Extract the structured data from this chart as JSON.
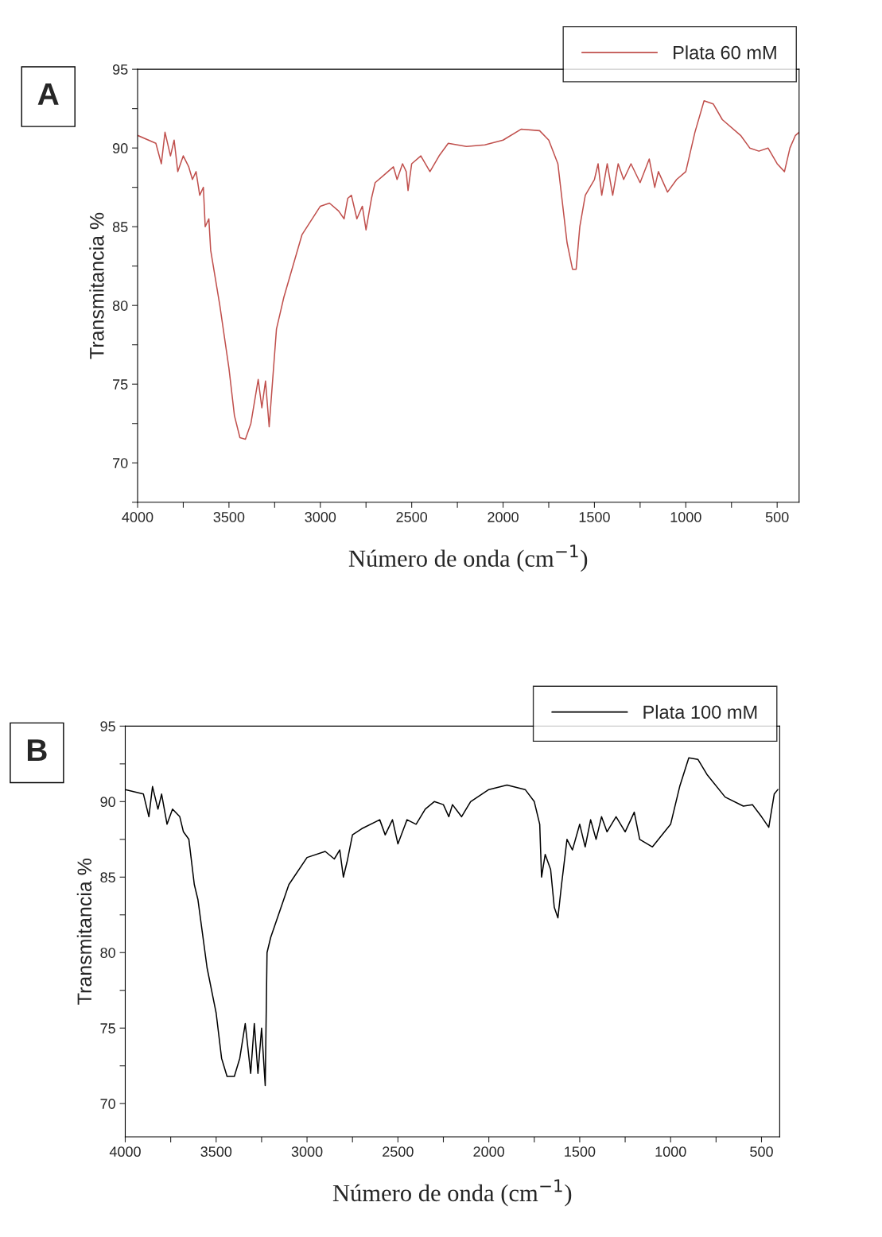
{
  "chart_data": [
    {
      "type": "line",
      "annotations": [
        "A"
      ],
      "xlabel": "Número de onda (cm$^{−1}$)",
      "ylabel": "Transmitancia %",
      "legend": "top right",
      "grid": false,
      "xlim": [
        4000,
        380
      ],
      "ylim": [
        67.5,
        95
      ],
      "xticks": [
        4000,
        {
          "value": 3750,
          "label": null
        },
        3500,
        {
          "value": 3250,
          "label": null
        },
        3000,
        {
          "value": 2750,
          "label": null
        },
        2500,
        {
          "value": 2250,
          "label": null
        },
        2000,
        {
          "value": 1750,
          "label": null
        },
        1500,
        {
          "value": 1250,
          "label": null
        },
        1000,
        {
          "value": 750,
          "label": null
        },
        500
      ],
      "yticks": [
        {
          "value": 67.5,
          "label": null
        },
        70,
        {
          "value": 72.5,
          "label": null
        },
        75,
        {
          "value": 77.5,
          "label": null
        },
        80,
        {
          "value": 82.5,
          "label": null
        },
        85,
        {
          "value": 87.5,
          "label": null
        },
        90,
        {
          "value": 92.5,
          "label": null
        },
        95
      ],
      "series": [
        {
          "name": "Plata 60 mM",
          "color": "#c0504d",
          "x": [
            4000,
            3900,
            3870,
            3850,
            3820,
            3800,
            3780,
            3750,
            3720,
            3700,
            3680,
            3660,
            3640,
            3630,
            3610,
            3600,
            3550,
            3500,
            3470,
            3440,
            3410,
            3380,
            3340,
            3320,
            3300,
            3280,
            3240,
            3220,
            3200,
            3100,
            3000,
            2950,
            2900,
            2870,
            2850,
            2830,
            2800,
            2770,
            2750,
            2720,
            2700,
            2650,
            2600,
            2580,
            2550,
            2530,
            2520,
            2500,
            2450,
            2400,
            2350,
            2300,
            2200,
            2100,
            2000,
            1900,
            1800,
            1750,
            1700,
            1680,
            1650,
            1620,
            1600,
            1580,
            1550,
            1500,
            1480,
            1460,
            1430,
            1400,
            1370,
            1340,
            1300,
            1250,
            1200,
            1170,
            1150,
            1100,
            1050,
            1000,
            950,
            900,
            850,
            800,
            700,
            650,
            600,
            550,
            500,
            460,
            430,
            400,
            380
          ],
          "values": [
            90.8,
            90.3,
            89.0,
            91.0,
            89.5,
            90.5,
            88.5,
            89.5,
            88.8,
            88.0,
            88.5,
            87.0,
            87.5,
            85.0,
            85.5,
            83.5,
            80.0,
            76.0,
            73.0,
            71.6,
            71.5,
            72.5,
            75.3,
            73.5,
            75.2,
            72.3,
            78.5,
            79.5,
            80.5,
            84.5,
            86.3,
            86.5,
            86.0,
            85.5,
            86.8,
            87.0,
            85.5,
            86.3,
            84.8,
            86.8,
            87.8,
            88.3,
            88.8,
            88.0,
            89.0,
            88.5,
            87.3,
            89.0,
            89.5,
            88.5,
            89.5,
            90.3,
            90.1,
            90.2,
            90.5,
            91.2,
            91.1,
            90.5,
            89.0,
            87.0,
            84.0,
            82.3,
            82.3,
            85.0,
            87.0,
            88.0,
            89.0,
            87.0,
            89.0,
            87.0,
            89.0,
            88.0,
            89.0,
            87.8,
            89.3,
            87.5,
            88.5,
            87.2,
            88.0,
            88.5,
            91.0,
            93.0,
            92.8,
            91.8,
            90.8,
            90.0,
            89.8,
            90.0,
            89.0,
            88.5,
            90.0,
            90.8,
            91.0
          ]
        }
      ]
    },
    {
      "type": "line",
      "annotations": [
        "B"
      ],
      "xlabel": "Número de onda (cm$^{−1}$)",
      "ylabel": "Transmitancia %",
      "legend": "top right",
      "grid": false,
      "xlim": [
        4000,
        400
      ],
      "ylim": [
        67.8,
        95
      ],
      "xticks": [
        4000,
        {
          "value": 3750,
          "label": null
        },
        3500,
        {
          "value": 3250,
          "label": null
        },
        3000,
        {
          "value": 2750,
          "label": null
        },
        2500,
        {
          "value": 2250,
          "label": null
        },
        2000,
        {
          "value": 1750,
          "label": null
        },
        1500,
        {
          "value": 1250,
          "label": null
        },
        1000,
        {
          "value": 750,
          "label": null
        },
        500
      ],
      "yticks": [
        70,
        {
          "value": 72.5,
          "label": null
        },
        75,
        {
          "value": 77.5,
          "label": null
        },
        80,
        {
          "value": 82.5,
          "label": null
        },
        85,
        {
          "value": 87.5,
          "label": null
        },
        90,
        {
          "value": 92.5,
          "label": null
        },
        95
      ],
      "series": [
        {
          "name": "Plata 100 mM",
          "color": "#000000",
          "x": [
            4000,
            3900,
            3870,
            3850,
            3820,
            3800,
            3770,
            3740,
            3700,
            3680,
            3650,
            3620,
            3600,
            3550,
            3500,
            3470,
            3440,
            3400,
            3370,
            3340,
            3310,
            3290,
            3270,
            3250,
            3230,
            3220,
            3200,
            3100,
            3000,
            2900,
            2850,
            2820,
            2800,
            2780,
            2750,
            2700,
            2600,
            2570,
            2530,
            2500,
            2450,
            2400,
            2350,
            2300,
            2250,
            2220,
            2200,
            2150,
            2100,
            2000,
            1900,
            1800,
            1750,
            1720,
            1710,
            1690,
            1660,
            1640,
            1620,
            1600,
            1570,
            1540,
            1500,
            1470,
            1440,
            1410,
            1380,
            1350,
            1300,
            1250,
            1200,
            1170,
            1100,
            1000,
            950,
            900,
            850,
            800,
            700,
            600,
            550,
            500,
            460,
            430,
            410
          ],
          "values": [
            90.8,
            90.5,
            89.0,
            91.0,
            89.5,
            90.5,
            88.5,
            89.5,
            89.0,
            88.0,
            87.5,
            84.5,
            83.5,
            79.0,
            76.0,
            73.0,
            71.8,
            71.8,
            73.0,
            75.3,
            72.0,
            75.3,
            72.0,
            75.0,
            71.2,
            80.0,
            81.0,
            84.5,
            86.3,
            86.7,
            86.2,
            86.8,
            85.0,
            86.0,
            87.8,
            88.2,
            88.8,
            87.8,
            88.8,
            87.2,
            88.8,
            88.5,
            89.5,
            90.0,
            89.8,
            89.0,
            89.8,
            89.0,
            90.0,
            90.8,
            91.1,
            90.8,
            90.0,
            88.5,
            85.0,
            86.5,
            85.5,
            83.0,
            82.3,
            84.5,
            87.5,
            86.8,
            88.5,
            87.0,
            88.8,
            87.5,
            89.0,
            88.0,
            89.0,
            88.0,
            89.3,
            87.5,
            87.0,
            88.5,
            91.0,
            92.9,
            92.8,
            91.8,
            90.3,
            89.7,
            89.8,
            89.0,
            88.3,
            90.5,
            90.8
          ]
        }
      ]
    }
  ]
}
